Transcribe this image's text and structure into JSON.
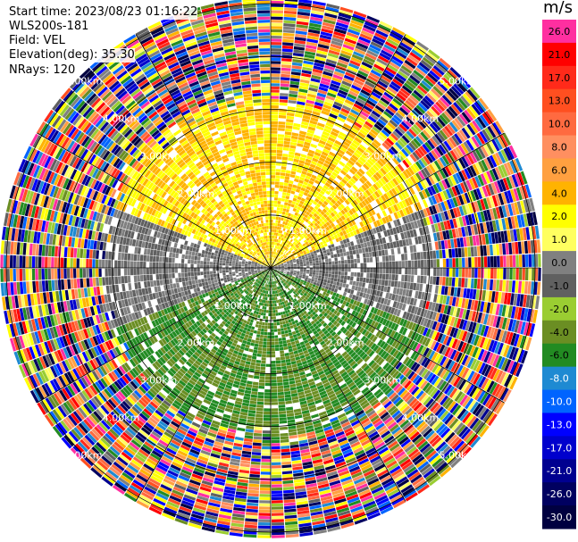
{
  "info": {
    "start_time": "Start time: 2023/08/23 01:16:22",
    "instrument": "WLS200s-181",
    "field": "Field: VEL",
    "elevation": "Elevation(deg): 35.30",
    "nrays": "NRays: 120"
  },
  "chart_data": {
    "type": "heatmap",
    "projection": "polar-ppi",
    "field": "VEL",
    "n_rays": 120,
    "range_rings_km": [
      1.0,
      2.0,
      3.0,
      4.0,
      5.0
    ],
    "range_labels": [
      "1.00km",
      "2.00km",
      "3.00km",
      "4.00km",
      "5.00km"
    ],
    "colorbar": {
      "unit": "m/s",
      "ticks": [
        "26.0",
        "21.0",
        "17.0",
        "13.0",
        "10.0",
        "8.0",
        "6.0",
        "4.0",
        "2.0",
        "1.0",
        "0.0",
        "-1.0",
        "-2.0",
        "-4.0",
        "-6.0",
        "-8.0",
        "-10.0",
        "-13.0",
        "-17.0",
        "-21.0",
        "-26.0",
        "-30.0"
      ],
      "colors": [
        "#ff2fa0",
        "#ff0000",
        "#ff2a1a",
        "#ff4f20",
        "#ff6a40",
        "#ff8f60",
        "#ffa040",
        "#ffb300",
        "#ffff00",
        "#ffff60",
        "#808080",
        "#606060",
        "#9acd32",
        "#6b8e23",
        "#228b22",
        "#1e8ad2",
        "#0064ff",
        "#0000ff",
        "#0000cd",
        "#000090",
        "#000060",
        "#000040"
      ]
    },
    "sectors": [
      {
        "description": "north",
        "az_from": -70,
        "az_to": 70,
        "value_range": [
          2.0,
          6.0
        ]
      },
      {
        "description": "east-west band",
        "az_from": 70,
        "az_to": 110,
        "value_range": [
          -1.0,
          1.0
        ]
      },
      {
        "description": "south",
        "az_from": 110,
        "az_to": 250,
        "value_range": [
          -6.0,
          -2.0
        ]
      },
      {
        "description": "west band",
        "az_from": 250,
        "az_to": 290,
        "value_range": [
          -1.0,
          1.0
        ]
      }
    ],
    "noise_beyond_km": 3.0
  }
}
